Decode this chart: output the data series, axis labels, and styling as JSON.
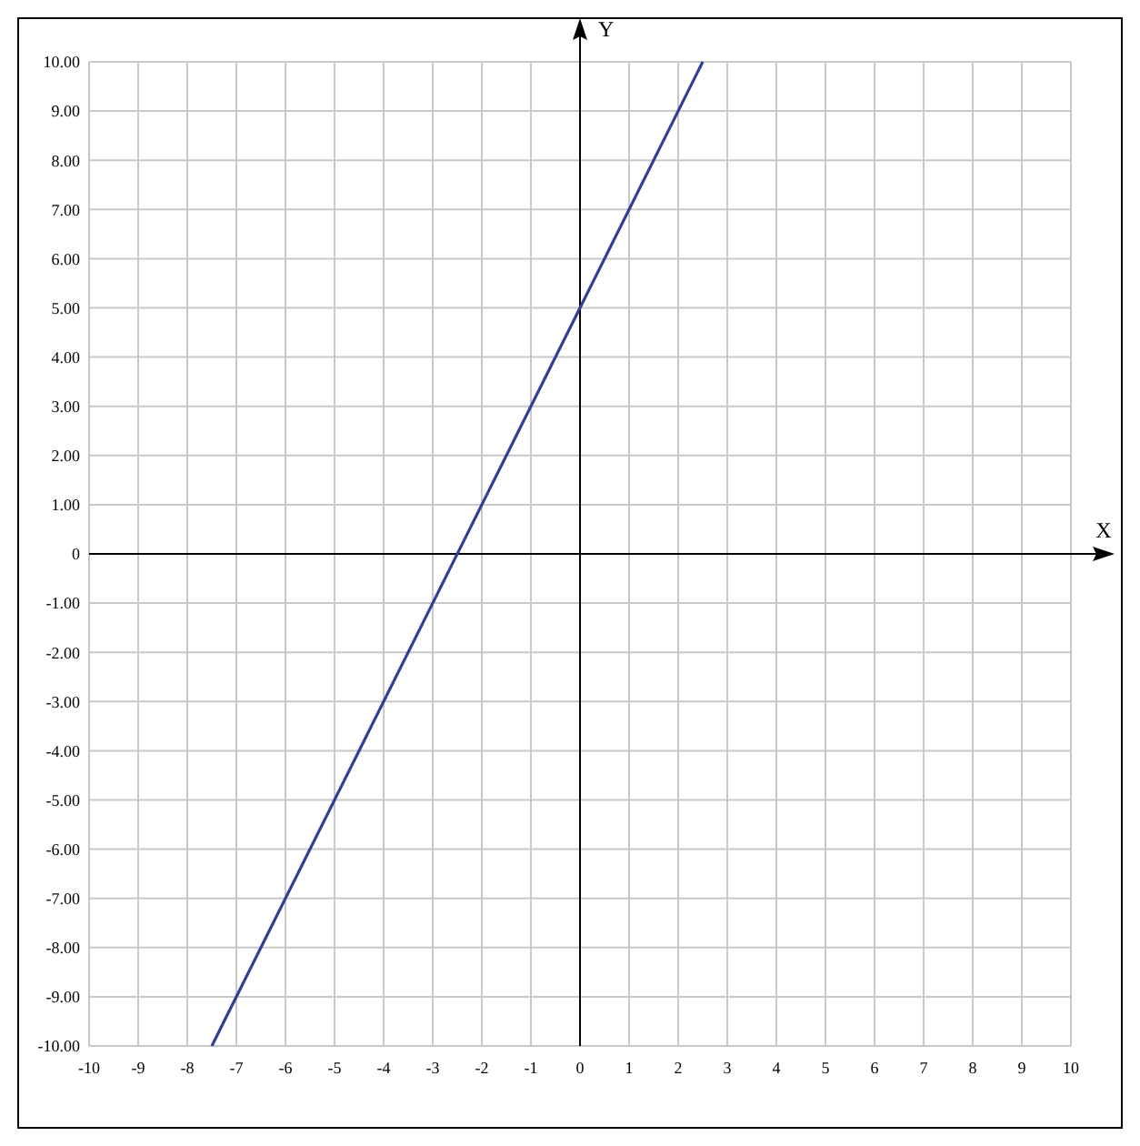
{
  "chart_data": {
    "type": "line",
    "xlabel": "X",
    "ylabel": "Y",
    "x": [
      -7.5,
      2.5
    ],
    "series": [
      {
        "color": "#2e3f96",
        "values": [
          -10,
          10
        ]
      }
    ],
    "xlim": [
      -10,
      10
    ],
    "ylim": [
      -10,
      10
    ],
    "xticks": [
      -10,
      -9,
      -8,
      -7,
      -6,
      -5,
      -4,
      -3,
      -2,
      -1,
      0,
      1,
      2,
      3,
      4,
      5,
      6,
      7,
      8,
      9,
      10
    ],
    "yticks": [
      {
        "value": -10,
        "label": "-10.00"
      },
      {
        "value": -9,
        "label": "-9.00"
      },
      {
        "value": -8,
        "label": "-8.00"
      },
      {
        "value": -7,
        "label": "-7.00"
      },
      {
        "value": -6,
        "label": "-6.00"
      },
      {
        "value": -5,
        "label": "-5.00"
      },
      {
        "value": -4,
        "label": "-4.00"
      },
      {
        "value": -3,
        "label": "-3.00"
      },
      {
        "value": -2,
        "label": "-2.00"
      },
      {
        "value": -1,
        "label": "-1.00"
      },
      0,
      {
        "value": 1,
        "label": "1.00"
      },
      {
        "value": 2,
        "label": "2.00"
      },
      {
        "value": 3,
        "label": "3.00"
      },
      {
        "value": 4,
        "label": "4.00"
      },
      {
        "value": 5,
        "label": "5.00"
      },
      {
        "value": 6,
        "label": "6.00"
      },
      {
        "value": 7,
        "label": "7.00"
      },
      {
        "value": 8,
        "label": "8.00"
      },
      {
        "value": 9,
        "label": "9.00"
      },
      {
        "value": 10,
        "label": "10.00"
      }
    ],
    "grid": true,
    "marker": "none",
    "line_style": "solid"
  }
}
